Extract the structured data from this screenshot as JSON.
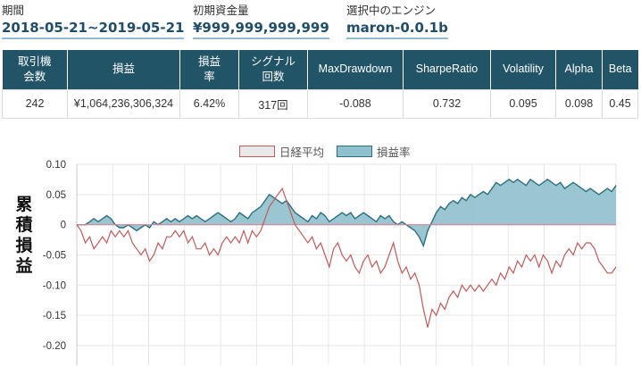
{
  "summary": {
    "period_label": "期間",
    "period_value": "2018-05-21~2019-05-21",
    "capital_label": "初期資金量",
    "capital_value": "¥999,999,999,999",
    "engine_label": "選択中のエンジン",
    "engine_value": "maron-0.0.1b"
  },
  "table": {
    "headers": [
      "取引機\n会数",
      "損益",
      "損益\n率",
      "シグナル\n回数",
      "MaxDrawdown",
      "SharpeRatio",
      "Volatility",
      "Alpha",
      "Beta"
    ],
    "row": [
      "242",
      "¥1,064,236,306,324",
      "6.42%",
      "317回",
      "-0.088",
      "0.732",
      "0.095",
      "0.098",
      "0.45"
    ]
  },
  "chart_labels": {
    "ylabel": "累積損益"
  },
  "colors": {
    "header_bg": "#225468",
    "value_text": "#1f4e6b",
    "nikkei_line": "#c25a5a",
    "pnl_fill": "#8fc0cd",
    "pnl_line": "#2e6f7f"
  },
  "chart_data": {
    "type": "area",
    "ylim": [
      -0.2,
      0.1
    ],
    "yticks": [
      "0.10",
      "0.05",
      "0",
      "-0.05",
      "-0.10",
      "-0.15",
      "-0.20"
    ],
    "grid": true,
    "legend": "top-center",
    "series": [
      {
        "name": "日経平均",
        "type": "line",
        "values": [
          0,
          -0.01,
          -0.03,
          -0.02,
          -0.04,
          -0.03,
          -0.02,
          -0.03,
          -0.01,
          -0.02,
          -0.01,
          -0.02,
          -0.01,
          -0.03,
          -0.04,
          -0.05,
          -0.04,
          -0.06,
          -0.05,
          -0.03,
          -0.04,
          -0.02,
          -0.02,
          -0.01,
          -0.02,
          -0.01,
          -0.03,
          -0.02,
          -0.04,
          -0.04,
          -0.03,
          -0.05,
          -0.04,
          -0.05,
          -0.03,
          -0.02,
          -0.03,
          -0.02,
          -0.03,
          -0.01,
          -0.03,
          -0.01,
          -0.02,
          -0.01,
          0.01,
          0.03,
          0.04,
          0.05,
          0.06,
          0.04,
          0.02,
          0.0,
          -0.01,
          -0.02,
          -0.03,
          -0.02,
          -0.04,
          -0.03,
          -0.05,
          -0.07,
          -0.04,
          -0.03,
          -0.05,
          -0.06,
          -0.05,
          -0.07,
          -0.08,
          -0.06,
          -0.05,
          -0.07,
          -0.06,
          -0.08,
          -0.07,
          -0.05,
          -0.03,
          -0.06,
          -0.08,
          -0.07,
          -0.09,
          -0.08,
          -0.1,
          -0.14,
          -0.17,
          -0.14,
          -0.15,
          -0.13,
          -0.14,
          -0.12,
          -0.11,
          -0.12,
          -0.1,
          -0.11,
          -0.1,
          -0.11,
          -0.1,
          -0.11,
          -0.1,
          -0.09,
          -0.1,
          -0.08,
          -0.09,
          -0.07,
          -0.08,
          -0.06,
          -0.07,
          -0.05,
          -0.06,
          -0.05,
          -0.07,
          -0.05,
          -0.06,
          -0.08,
          -0.06,
          -0.07,
          -0.05,
          -0.04,
          -0.05,
          -0.03,
          -0.04,
          -0.03,
          -0.03,
          -0.04,
          -0.06,
          -0.07,
          -0.08,
          -0.08,
          -0.07
        ]
      },
      {
        "name": "損益率",
        "type": "area",
        "values": [
          0,
          0,
          0,
          0.005,
          0.01,
          0.005,
          0.01,
          0.015,
          0.01,
          0,
          -0.005,
          -0.005,
          0,
          -0.005,
          -0.01,
          -0.005,
          0,
          -0.005,
          0.005,
          0,
          0.005,
          0.01,
          0.005,
          0.01,
          0.005,
          0.01,
          0.015,
          0.01,
          0.015,
          0.01,
          0.005,
          0.01,
          0.015,
          0.02,
          0.015,
          0.01,
          0.005,
          0.01,
          0.02,
          0.015,
          0.01,
          0.02,
          0.025,
          0.03,
          0.04,
          0.05,
          0.045,
          0.04,
          0.035,
          0.04,
          0.03,
          0.02,
          0.015,
          0.01,
          0.005,
          0.015,
          0.01,
          0.02,
          0.015,
          0.005,
          0.01,
          0.015,
          0.02,
          0.015,
          0.02,
          0.01,
          0.015,
          0.02,
          0.015,
          0.01,
          0.005,
          0.015,
          0.01,
          0.015,
          0.005,
          0,
          0.005,
          0,
          -0.005,
          -0.01,
          -0.02,
          -0.035,
          -0.01,
          0.005,
          0.02,
          0.03,
          0.025,
          0.035,
          0.04,
          0.035,
          0.045,
          0.04,
          0.05,
          0.045,
          0.05,
          0.055,
          0.05,
          0.06,
          0.07,
          0.065,
          0.07,
          0.075,
          0.07,
          0.075,
          0.07,
          0.065,
          0.075,
          0.07,
          0.065,
          0.07,
          0.075,
          0.07,
          0.065,
          0.07,
          0.06,
          0.065,
          0.07,
          0.065,
          0.06,
          0.055,
          0.06,
          0.055,
          0.05,
          0.055,
          0.06,
          0.055,
          0.065
        ]
      }
    ]
  }
}
